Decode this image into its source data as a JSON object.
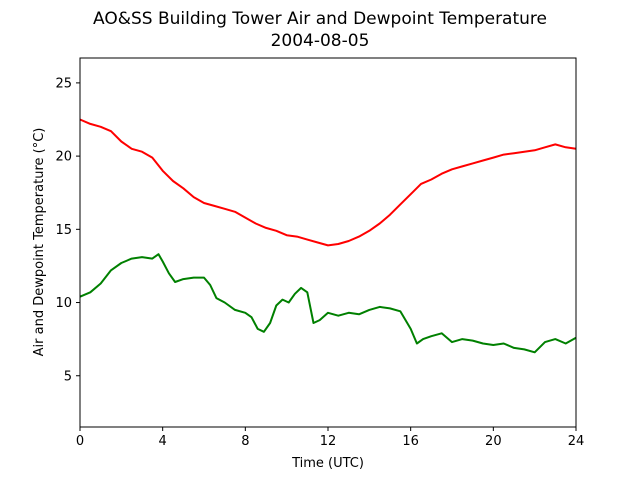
{
  "chart_data": {
    "type": "line",
    "title": "AO&SS Building Tower Air and Dewpoint Temperature",
    "subtitle": "2004-08-05",
    "xlabel": "Time (UTC)",
    "ylabel": "Air and Dewpoint Temperature (°C)",
    "xlim": [
      0,
      24
    ],
    "ylim": [
      1.5,
      26.7
    ],
    "xticks": [
      0,
      4,
      8,
      12,
      16,
      20,
      24
    ],
    "yticks": [
      5,
      10,
      15,
      20,
      25
    ],
    "grid": false,
    "series": [
      {
        "color": "#ff0000",
        "x": [
          0,
          0.5,
          1,
          1.5,
          2,
          2.5,
          3,
          3.5,
          4,
          4.5,
          5,
          5.5,
          6,
          6.5,
          7,
          7.5,
          8,
          8.5,
          9,
          9.5,
          10,
          10.5,
          11,
          11.5,
          12,
          12.5,
          13,
          13.5,
          14,
          14.5,
          15,
          15.5,
          16,
          16.5,
          17,
          17.5,
          18,
          18.5,
          19,
          19.5,
          20,
          20.5,
          21,
          21.5,
          22,
          22.5,
          23,
          23.5,
          24
        ],
        "y": [
          22.5,
          22.2,
          22.0,
          21.7,
          21.0,
          20.5,
          20.3,
          19.9,
          19.0,
          18.3,
          17.8,
          17.2,
          16.8,
          16.6,
          16.4,
          16.2,
          15.8,
          15.4,
          15.1,
          14.9,
          14.6,
          14.5,
          14.3,
          14.1,
          13.9,
          14.0,
          14.2,
          14.5,
          14.9,
          15.4,
          16.0,
          16.7,
          17.4,
          18.1,
          18.4,
          18.8,
          19.1,
          19.3,
          19.5,
          19.7,
          19.9,
          20.1,
          20.2,
          20.3,
          20.4,
          20.6,
          20.8,
          20.6,
          20.5
        ]
      },
      {
        "color": "#008000",
        "x": [
          0,
          0.5,
          1,
          1.5,
          2,
          2.5,
          3,
          3.5,
          3.8,
          4,
          4.3,
          4.6,
          5,
          5.5,
          6,
          6.3,
          6.6,
          7,
          7.5,
          8,
          8.3,
          8.6,
          8.9,
          9.2,
          9.5,
          9.8,
          10.1,
          10.4,
          10.7,
          11,
          11.3,
          11.6,
          12,
          12.5,
          13,
          13.5,
          14,
          14.5,
          15,
          15.5,
          16,
          16.3,
          16.6,
          17,
          17.5,
          18,
          18.5,
          19,
          19.5,
          20,
          20.5,
          21,
          21.5,
          22,
          22.5,
          23,
          23.5,
          24
        ],
        "y": [
          10.4,
          10.7,
          11.3,
          12.2,
          12.7,
          13.0,
          13.1,
          13.0,
          13.3,
          12.8,
          12.0,
          11.4,
          11.6,
          11.7,
          11.7,
          11.2,
          10.3,
          10.0,
          9.5,
          9.3,
          9.0,
          8.2,
          8.0,
          8.6,
          9.8,
          10.2,
          10.0,
          10.6,
          11.0,
          10.7,
          8.6,
          8.8,
          9.3,
          9.1,
          9.3,
          9.2,
          9.5,
          9.7,
          9.6,
          9.4,
          8.2,
          7.2,
          7.5,
          7.7,
          7.9,
          7.3,
          7.5,
          7.4,
          7.2,
          7.1,
          7.2,
          6.9,
          6.8,
          6.6,
          7.3,
          7.5,
          7.2,
          7.6
        ]
      }
    ]
  }
}
